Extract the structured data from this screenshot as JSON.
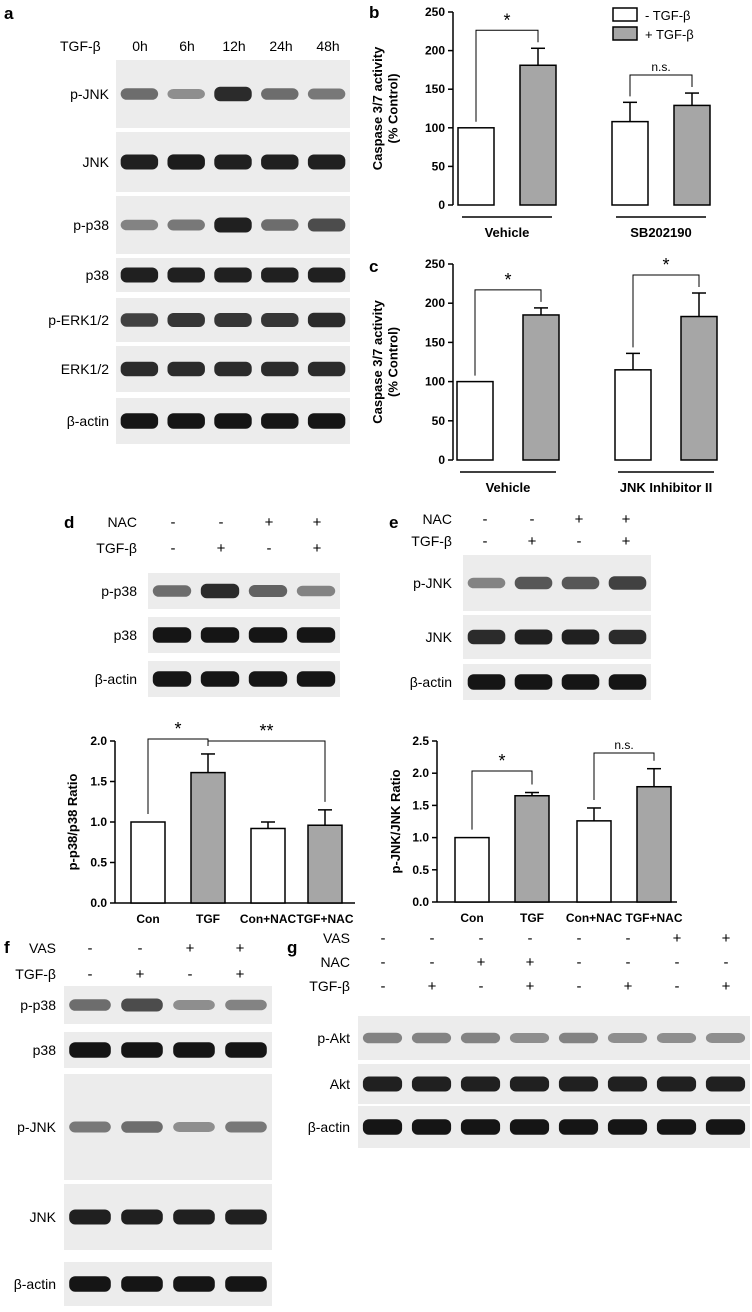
{
  "panels": {
    "a": {
      "letter": "a",
      "header_label": "TGF-β",
      "timepoints": [
        "0h",
        "6h",
        "12h",
        "24h",
        "48h"
      ],
      "blots": [
        {
          "label": "p-JNK",
          "intensity": [
            0.55,
            0.4,
            0.85,
            0.55,
            0.5
          ]
        },
        {
          "label": "JNK",
          "intensity": [
            0.9,
            0.92,
            0.9,
            0.9,
            0.9
          ]
        },
        {
          "label": "p-p38",
          "intensity": [
            0.45,
            0.5,
            0.9,
            0.55,
            0.7
          ]
        },
        {
          "label": "p38",
          "intensity": [
            0.9,
            0.9,
            0.9,
            0.9,
            0.9
          ]
        },
        {
          "label": "p-ERK1/2",
          "intensity": [
            0.75,
            0.8,
            0.8,
            0.8,
            0.85
          ]
        },
        {
          "label": "ERK1/2",
          "intensity": [
            0.85,
            0.85,
            0.85,
            0.85,
            0.85
          ]
        },
        {
          "label": "β-actin",
          "intensity": [
            0.95,
            0.95,
            0.95,
            0.95,
            0.95
          ]
        }
      ]
    },
    "d": {
      "letter": "d",
      "rows": [
        {
          "label": "NAC",
          "signs": [
            "-",
            "-",
            "+",
            "+"
          ]
        },
        {
          "label": "TGF-β",
          "signs": [
            "-",
            "+",
            "-",
            "+"
          ]
        }
      ],
      "blots": [
        {
          "label": "p-p38",
          "intensity": [
            0.55,
            0.85,
            0.6,
            0.45
          ]
        },
        {
          "label": "p38",
          "intensity": [
            0.95,
            0.95,
            0.95,
            0.95
          ]
        },
        {
          "label": "β-actin",
          "intensity": [
            0.95,
            0.95,
            0.95,
            0.95
          ]
        }
      ]
    },
    "e": {
      "letter": "e",
      "rows": [
        {
          "label": "NAC",
          "signs": [
            "-",
            "-",
            "+",
            "+"
          ]
        },
        {
          "label": "TGF-β",
          "signs": [
            "-",
            "+",
            "-",
            "+"
          ]
        }
      ],
      "blots": [
        {
          "label": "p-JNK",
          "intensity": [
            0.45,
            0.65,
            0.65,
            0.75
          ]
        },
        {
          "label": "JNK",
          "intensity": [
            0.85,
            0.9,
            0.9,
            0.85
          ]
        },
        {
          "label": "β-actin",
          "intensity": [
            0.95,
            0.95,
            0.95,
            0.95
          ]
        }
      ]
    },
    "f": {
      "letter": "f",
      "rows": [
        {
          "label": "VAS",
          "signs": [
            "-",
            "-",
            "+",
            "+"
          ]
        },
        {
          "label": "TGF-β",
          "signs": [
            "-",
            "+",
            "-",
            "+"
          ]
        }
      ],
      "blots": [
        {
          "label": "p-p38",
          "intensity": [
            0.55,
            0.7,
            0.4,
            0.45
          ]
        },
        {
          "label": "p38",
          "intensity": [
            0.95,
            0.95,
            0.95,
            0.95
          ]
        },
        {
          "label": "p-JNK",
          "intensity": [
            0.5,
            0.55,
            0.4,
            0.5
          ]
        },
        {
          "label": "JNK",
          "intensity": [
            0.9,
            0.9,
            0.9,
            0.9
          ]
        },
        {
          "label": "β-actin",
          "intensity": [
            0.95,
            0.95,
            0.95,
            0.95
          ]
        }
      ]
    },
    "g": {
      "letter": "g",
      "rows": [
        {
          "label": "VAS",
          "signs": [
            "-",
            "-",
            "-",
            "-",
            "-",
            "-",
            "+",
            "+"
          ]
        },
        {
          "label": "NAC",
          "signs": [
            "-",
            "-",
            "+",
            "+",
            "-",
            "-",
            "-",
            "-"
          ]
        },
        {
          "label": "TGF-β",
          "signs": [
            "-",
            "+",
            "-",
            "+",
            "-",
            "+",
            "-",
            "+"
          ]
        }
      ],
      "blots": [
        {
          "label": "p-Akt",
          "intensity": [
            0.45,
            0.45,
            0.45,
            0.4,
            0.45,
            0.4,
            0.4,
            0.4
          ]
        },
        {
          "label": "Akt",
          "intensity": [
            0.9,
            0.9,
            0.9,
            0.9,
            0.9,
            0.9,
            0.9,
            0.9
          ]
        },
        {
          "label": "β-actin",
          "intensity": [
            0.95,
            0.95,
            0.95,
            0.95,
            0.95,
            0.95,
            0.95,
            0.95
          ]
        }
      ]
    }
  },
  "chart_data": [
    {
      "id": "b",
      "type": "bar",
      "letter": "b",
      "ylabel": "Caspase 3/7 activity\n(% Control)",
      "ylim": [
        0,
        250
      ],
      "yticks": [
        0,
        50,
        100,
        150,
        200,
        250
      ],
      "groups": [
        "Vehicle",
        "SB202190"
      ],
      "series": [
        {
          "name": "- TGF-β",
          "fill": "#ffffff",
          "values": [
            100,
            108
          ],
          "errors": [
            0,
            25
          ]
        },
        {
          "name": "+ TGF-β",
          "fill": "#a6a6a6",
          "values": [
            181,
            129
          ],
          "errors": [
            22,
            16
          ]
        }
      ],
      "annotations": [
        {
          "group": 0,
          "text": "*"
        },
        {
          "group": 1,
          "text": "n.s."
        }
      ],
      "legend": "top-right"
    },
    {
      "id": "c",
      "type": "bar",
      "letter": "c",
      "ylabel": "Caspase 3/7 activity\n(% Control)",
      "ylim": [
        0,
        250
      ],
      "yticks": [
        0,
        50,
        100,
        150,
        200,
        250
      ],
      "groups": [
        "Vehicle",
        "JNK Inhibitor II"
      ],
      "series": [
        {
          "name": "- TGF-β",
          "fill": "#ffffff",
          "values": [
            100,
            115
          ],
          "errors": [
            0,
            21
          ]
        },
        {
          "name": "+ TGF-β",
          "fill": "#a6a6a6",
          "values": [
            185,
            183
          ],
          "errors": [
            9,
            30
          ]
        }
      ],
      "annotations": [
        {
          "group": 0,
          "text": "*"
        },
        {
          "group": 1,
          "text": "*"
        }
      ]
    },
    {
      "id": "d",
      "type": "bar",
      "ylabel": "p-p38/p38 Ratio",
      "ylim": [
        0,
        2.0
      ],
      "yticks": [
        0.0,
        0.5,
        1.0,
        1.5,
        2.0
      ],
      "categories": [
        "Con",
        "TGF",
        "Con+NAC",
        "TGF+NAC"
      ],
      "values": [
        1.0,
        1.61,
        0.92,
        0.96
      ],
      "errors": [
        0,
        0.23,
        0.08,
        0.19
      ],
      "fills": [
        "#ffffff",
        "#a6a6a6",
        "#ffffff",
        "#a6a6a6"
      ],
      "comparisons": [
        {
          "from": 0,
          "to": 1,
          "text": "*"
        },
        {
          "from": 1,
          "to": 3,
          "text": "**"
        }
      ]
    },
    {
      "id": "e",
      "type": "bar",
      "ylabel": "p-JNK/JNK Ratio",
      "ylim": [
        0,
        2.5
      ],
      "yticks": [
        0.0,
        0.5,
        1.0,
        1.5,
        2.0,
        2.5
      ],
      "categories": [
        "Con",
        "TGF",
        "Con+NAC",
        "TGF+NAC"
      ],
      "values": [
        1.0,
        1.65,
        1.26,
        1.79
      ],
      "errors": [
        0,
        0.05,
        0.2,
        0.28
      ],
      "fills": [
        "#ffffff",
        "#a6a6a6",
        "#ffffff",
        "#a6a6a6"
      ],
      "comparisons": [
        {
          "from": 0,
          "to": 1,
          "text": "*"
        },
        {
          "from": 2,
          "to": 3,
          "text": "n.s."
        }
      ]
    }
  ]
}
